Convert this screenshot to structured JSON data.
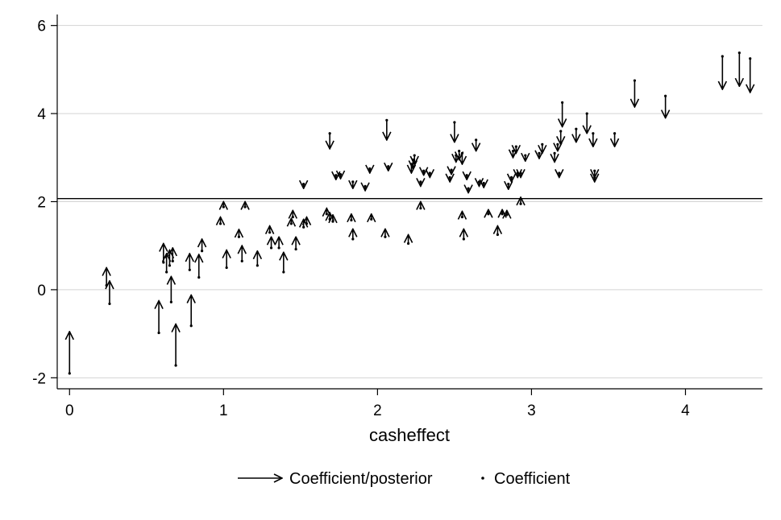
{
  "chart_data": {
    "type": "scatter",
    "title": "",
    "xlabel": "casheffect",
    "ylabel": "",
    "xlim": [
      -0.08,
      4.5
    ],
    "ylim": [
      -2.25,
      6.25
    ],
    "x_ticks": [
      0,
      1,
      2,
      3,
      4
    ],
    "y_ticks": [
      -2,
      0,
      2,
      4,
      6
    ],
    "grid": true,
    "reference_line": 2.07,
    "legend_position": "bottom",
    "legend": {
      "arrow_label": "Coefficient/posterior",
      "point_label": "Coefficient"
    },
    "series": [
      {
        "name": "Coefficient/posterior",
        "points": [
          [
            0.0,
            -1.9,
            -0.95
          ],
          [
            0.24,
            0.1,
            0.5
          ],
          [
            0.26,
            -0.32,
            0.2
          ],
          [
            0.58,
            -0.98,
            -0.25
          ],
          [
            0.61,
            0.62,
            1.05
          ],
          [
            0.63,
            0.4,
            0.82
          ],
          [
            0.65,
            0.55,
            0.9
          ],
          [
            0.66,
            -0.28,
            0.3
          ],
          [
            0.67,
            0.65,
            0.95
          ],
          [
            0.69,
            -1.72,
            -0.78
          ],
          [
            0.78,
            0.45,
            0.82
          ],
          [
            0.79,
            -0.82,
            -0.12
          ],
          [
            0.84,
            0.28,
            0.8
          ],
          [
            0.86,
            0.88,
            1.15
          ],
          [
            0.98,
            1.5,
            1.65
          ],
          [
            1.0,
            1.88,
            2.0
          ],
          [
            1.02,
            0.5,
            0.9
          ],
          [
            1.1,
            1.2,
            1.37
          ],
          [
            1.12,
            0.65,
            1.0
          ],
          [
            1.14,
            1.88,
            2.0
          ],
          [
            1.22,
            0.55,
            0.88
          ],
          [
            1.3,
            1.3,
            1.45
          ],
          [
            1.31,
            0.95,
            1.2
          ],
          [
            1.36,
            0.95,
            1.2
          ],
          [
            1.39,
            0.4,
            0.85
          ],
          [
            1.44,
            1.5,
            1.62
          ],
          [
            1.45,
            1.65,
            1.8
          ],
          [
            1.47,
            0.92,
            1.2
          ],
          [
            1.52,
            1.42,
            1.6
          ],
          [
            1.54,
            1.5,
            1.65
          ],
          [
            1.67,
            1.72,
            1.85
          ],
          [
            1.69,
            1.6,
            1.75
          ],
          [
            1.71,
            1.55,
            1.7
          ],
          [
            1.83,
            1.58,
            1.72
          ],
          [
            1.84,
            1.15,
            1.38
          ],
          [
            1.96,
            1.6,
            1.72
          ],
          [
            2.05,
            1.2,
            1.38
          ],
          [
            2.2,
            1.05,
            1.25
          ],
          [
            2.28,
            1.85,
            2.0
          ],
          [
            2.55,
            1.65,
            1.78
          ],
          [
            2.56,
            1.15,
            1.38
          ],
          [
            2.72,
            1.72,
            1.82
          ],
          [
            2.78,
            1.25,
            1.45
          ],
          [
            2.81,
            1.72,
            1.82
          ],
          [
            2.84,
            1.7,
            1.8
          ],
          [
            2.93,
            1.95,
            2.1
          ]
        ]
      },
      {
        "name": "Coefficient/posterior",
        "points": [
          [
            1.52,
            2.4,
            2.3
          ],
          [
            1.69,
            3.55,
            3.2
          ],
          [
            1.73,
            2.6,
            2.5
          ],
          [
            1.76,
            2.62,
            2.52
          ],
          [
            1.84,
            2.45,
            2.3
          ],
          [
            1.92,
            2.35,
            2.25
          ],
          [
            1.95,
            2.75,
            2.65
          ],
          [
            2.06,
            3.85,
            3.4
          ],
          [
            2.07,
            2.8,
            2.7
          ],
          [
            2.22,
            2.85,
            2.65
          ],
          [
            2.23,
            2.95,
            2.75
          ],
          [
            2.24,
            3.05,
            2.85
          ],
          [
            2.28,
            2.45,
            2.35
          ],
          [
            2.3,
            2.7,
            2.6
          ],
          [
            2.34,
            2.65,
            2.55
          ],
          [
            2.47,
            2.55,
            2.45
          ],
          [
            2.48,
            2.72,
            2.62
          ],
          [
            2.5,
            3.8,
            3.35
          ],
          [
            2.51,
            3.05,
            2.9
          ],
          [
            2.53,
            3.15,
            2.95
          ],
          [
            2.55,
            3.1,
            2.85
          ],
          [
            2.58,
            2.6,
            2.5
          ],
          [
            2.59,
            2.3,
            2.2
          ],
          [
            2.64,
            3.4,
            3.15
          ],
          [
            2.66,
            2.45,
            2.35
          ],
          [
            2.69,
            2.42,
            2.32
          ],
          [
            2.85,
            2.4,
            2.28
          ],
          [
            2.87,
            2.55,
            2.45
          ],
          [
            2.88,
            3.15,
            3.0
          ],
          [
            2.9,
            3.25,
            3.1
          ],
          [
            2.91,
            2.65,
            2.55
          ],
          [
            2.93,
            2.65,
            2.55
          ],
          [
            2.96,
            3.05,
            2.92
          ],
          [
            3.05,
            3.1,
            2.98
          ],
          [
            3.07,
            3.3,
            3.1
          ],
          [
            3.15,
            3.1,
            2.9
          ],
          [
            3.17,
            3.3,
            3.15
          ],
          [
            3.18,
            2.65,
            2.55
          ],
          [
            3.19,
            3.6,
            3.3
          ],
          [
            3.2,
            4.25,
            3.7
          ],
          [
            3.29,
            3.65,
            3.35
          ],
          [
            3.36,
            4.0,
            3.55
          ],
          [
            3.4,
            3.55,
            3.25
          ],
          [
            3.41,
            2.7,
            2.55
          ],
          [
            3.41,
            2.55,
            2.45
          ],
          [
            3.54,
            3.55,
            3.25
          ],
          [
            3.67,
            4.75,
            4.15
          ],
          [
            3.87,
            4.4,
            3.9
          ],
          [
            4.24,
            5.3,
            4.55
          ],
          [
            4.35,
            5.38,
            4.62
          ],
          [
            4.42,
            5.25,
            4.48
          ]
        ]
      }
    ]
  }
}
